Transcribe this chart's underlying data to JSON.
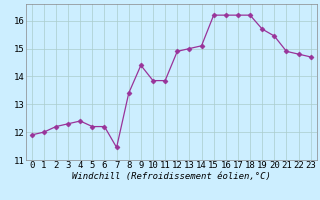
{
  "x": [
    0,
    1,
    2,
    3,
    4,
    5,
    6,
    7,
    8,
    9,
    10,
    11,
    12,
    13,
    14,
    15,
    16,
    17,
    18,
    19,
    20,
    21,
    22,
    23
  ],
  "y": [
    11.9,
    12.0,
    12.2,
    12.3,
    12.4,
    12.2,
    12.2,
    11.45,
    13.4,
    14.4,
    13.85,
    13.85,
    14.9,
    15.0,
    15.1,
    16.2,
    16.2,
    16.2,
    16.2,
    15.7,
    15.45,
    14.9,
    14.8,
    14.7
  ],
  "line_color": "#993399",
  "marker": "D",
  "markersize": 2.5,
  "linewidth": 0.9,
  "bg_color": "#cceeff",
  "grid_color": "#aacccc",
  "xlabel": "Windchill (Refroidissement éolien,°C)",
  "xlabel_fontsize": 6.5,
  "tick_fontsize": 6.5,
  "ylim": [
    11.0,
    16.6
  ],
  "xlim": [
    -0.5,
    23.5
  ],
  "yticks": [
    11,
    12,
    13,
    14,
    15,
    16
  ],
  "xticks": [
    0,
    1,
    2,
    3,
    4,
    5,
    6,
    7,
    8,
    9,
    10,
    11,
    12,
    13,
    14,
    15,
    16,
    17,
    18,
    19,
    20,
    21,
    22,
    23
  ]
}
